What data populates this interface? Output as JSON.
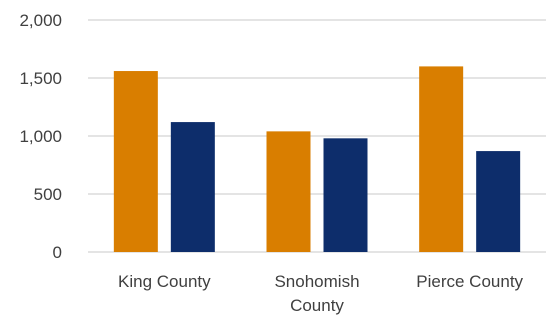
{
  "chart_data": {
    "type": "bar",
    "categories": [
      [
        "King County"
      ],
      [
        "Snohomish",
        "County"
      ],
      [
        "Pierce County"
      ]
    ],
    "series": [
      {
        "color": "#d97e00",
        "values": [
          1560,
          1040,
          1600
        ]
      },
      {
        "color": "#0d2d6b",
        "values": [
          1120,
          980,
          870
        ]
      }
    ],
    "y_ticks": [
      "0",
      "500",
      "1,000",
      "1,500",
      "2,000"
    ],
    "ylim": [
      0,
      2000
    ],
    "grid": true,
    "legend": "none"
  }
}
